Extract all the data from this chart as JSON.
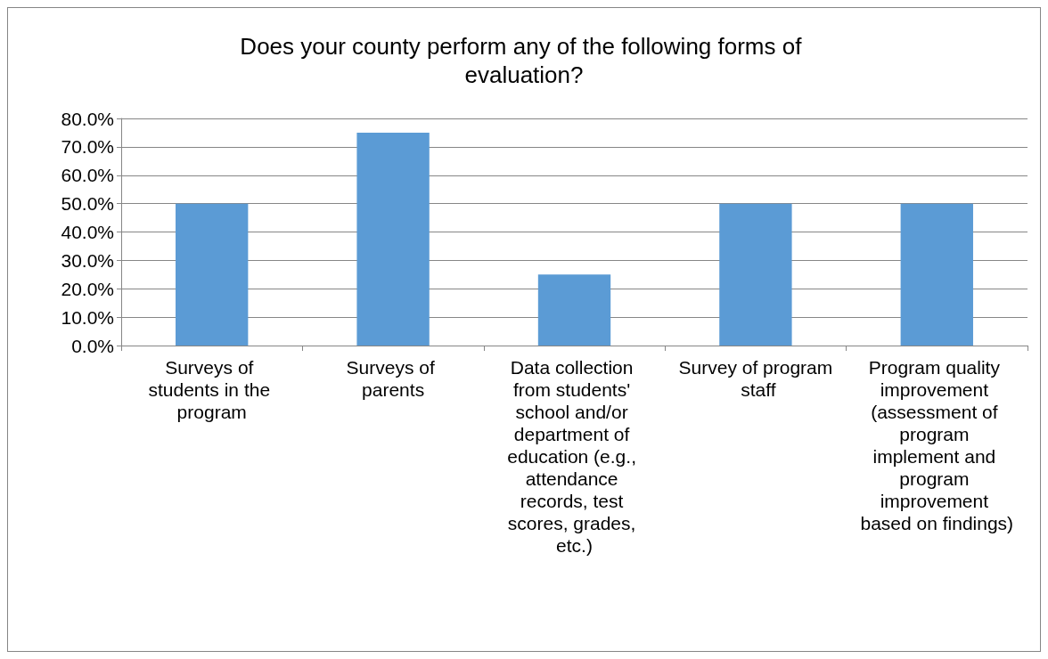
{
  "chart_data": {
    "type": "bar",
    "title": "Does your county perform any of the following forms of evaluation?",
    "categories": [
      "Surveys of students in the program",
      "Surveys of parents",
      "Data collection from students' school and/or department of education (e.g., attendance records, test scores, grades, etc.)",
      "Survey of program staff",
      "Program quality improvement (assessment of program implement and program improvement based on findings)"
    ],
    "values": [
      50,
      75,
      25,
      50,
      50
    ],
    "color": "#5b9bd5",
    "ylim": [
      0,
      80
    ],
    "yticks": [
      {
        "value": 0,
        "label": "0.0%"
      },
      {
        "value": 10,
        "label": "10.0%"
      },
      {
        "value": 20,
        "label": "20.0%"
      },
      {
        "value": 30,
        "label": "30.0%"
      },
      {
        "value": 40,
        "label": "40.0%"
      },
      {
        "value": 50,
        "label": "50.0%"
      },
      {
        "value": 60,
        "label": "60.0%"
      },
      {
        "value": 70,
        "label": "70.0%"
      },
      {
        "value": 80,
        "label": "80.0%"
      }
    ],
    "grid": "y"
  }
}
